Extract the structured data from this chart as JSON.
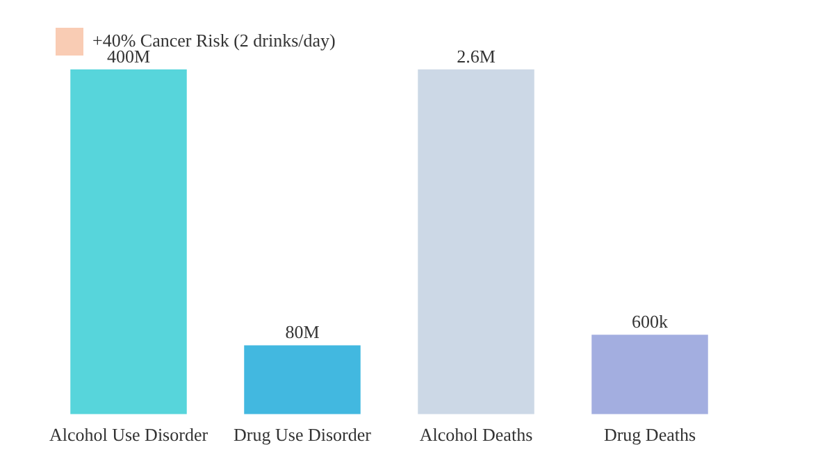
{
  "chart_data": {
    "type": "bar",
    "categories": [
      "Alcohol Use Disorder",
      "Drug Use Disorder",
      "Alcohol Deaths",
      "Drug Deaths"
    ],
    "series": [
      {
        "colors": [
          "#57d5db",
          "#42b8e0",
          "#ccd8e6",
          "#a3aee0"
        ],
        "values": [
          400000000,
          80000000,
          null,
          null
        ],
        "value_labels": [
          "400M",
          "80M",
          null,
          null
        ]
      },
      {
        "colors": [
          "#57d5db",
          "#42b8e0",
          "#ccd8e6",
          "#a3aee0"
        ],
        "values": [
          null,
          null,
          2600000,
          600000
        ],
        "value_labels": [
          null,
          null,
          "2.6M",
          "600k"
        ],
        "axis": "y2"
      },
      {
        "name": "+40% Cancer Risk (2 drinks/day)",
        "color": "#f9ccb4",
        "values": [
          null,
          null,
          null,
          null
        ]
      }
    ],
    "legend": "top left",
    "tick_labels": "x",
    "grid": false
  }
}
